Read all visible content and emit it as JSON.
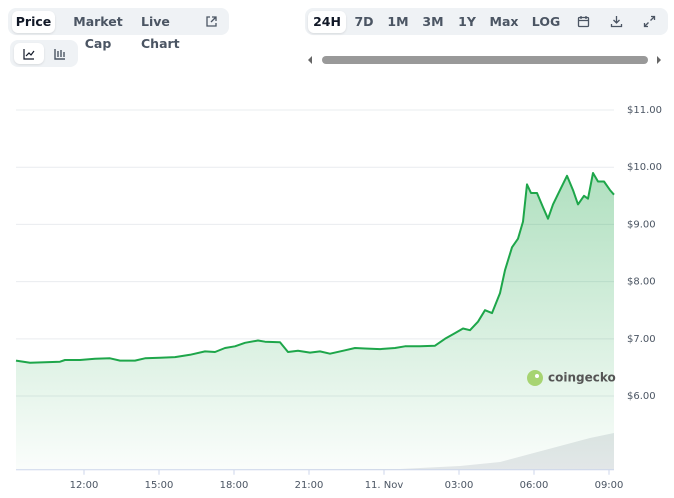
{
  "ui": {
    "tabs": [
      "Price",
      "Market Cap",
      "Live Chart"
    ],
    "ranges": [
      "24H",
      "7D",
      "1M",
      "3M",
      "1Y",
      "Max",
      "LOG"
    ],
    "watermark": "coingecko"
  },
  "chart_data": {
    "type": "line",
    "x": [
      9.28,
      9.84,
      10.44,
      11.04,
      11.24,
      11.84,
      12.44,
      13.04,
      13.44,
      14.04,
      14.44,
      15.04,
      15.64,
      16.24,
      16.84,
      17.24,
      17.64,
      18.04,
      18.44,
      18.96,
      19.24,
      19.84,
      20.16,
      20.56,
      21.04,
      21.44,
      21.84,
      22.44,
      22.84,
      23.24,
      23.84,
      24.44,
      24.84,
      25.44,
      26.04,
      26.44,
      26.84,
      27.16,
      27.44,
      27.76,
      28.04,
      28.32,
      28.64,
      28.84,
      29.12,
      29.36,
      29.56,
      29.72,
      29.88,
      30.12,
      30.36,
      30.56,
      30.76,
      31.04,
      31.32,
      31.56,
      31.76,
      32.0,
      32.16,
      32.36,
      32.56,
      32.8,
      33.04,
      33.2
    ],
    "series": [
      {
        "color": "#1ea64a",
        "values": [
          6.62,
          6.58,
          6.59,
          6.6,
          6.63,
          6.63,
          6.65,
          6.66,
          6.62,
          6.62,
          6.66,
          6.67,
          6.68,
          6.72,
          6.78,
          6.77,
          6.84,
          6.87,
          6.93,
          6.97,
          6.95,
          6.94,
          6.77,
          6.79,
          6.76,
          6.78,
          6.74,
          6.8,
          6.84,
          6.83,
          6.82,
          6.84,
          6.87,
          6.87,
          6.88,
          7.0,
          7.1,
          7.18,
          7.15,
          7.3,
          7.5,
          7.45,
          7.8,
          8.2,
          8.6,
          8.75,
          9.05,
          9.7,
          9.55,
          9.55,
          9.3,
          9.1,
          9.35,
          9.6,
          9.85,
          9.6,
          9.35,
          9.5,
          9.45,
          9.9,
          9.75,
          9.75,
          9.6,
          9.52
        ]
      }
    ],
    "xlim": [
      9.28,
      33.2
    ],
    "xticks": [
      {
        "value": 12,
        "label": "12:00"
      },
      {
        "value": 15,
        "label": "15:00"
      },
      {
        "value": 18,
        "label": "18:00"
      },
      {
        "value": 21,
        "label": "21:00"
      },
      {
        "value": 24,
        "label": "11. Nov"
      },
      {
        "value": 27,
        "label": "03:00"
      },
      {
        "value": 30,
        "label": "06:00"
      },
      {
        "value": 33,
        "label": "09:00"
      }
    ],
    "ylim": [
      4.71,
      11.27
    ],
    "yticks": [
      {
        "value": 6,
        "label": "$6.00"
      },
      {
        "value": 7,
        "label": "$7.00"
      },
      {
        "value": 8,
        "label": "$8.00"
      },
      {
        "value": 9,
        "label": "$9.00"
      },
      {
        "value": 10,
        "label": "$10.00"
      },
      {
        "value": 11,
        "label": "$11.00"
      }
    ],
    "grid": true
  }
}
